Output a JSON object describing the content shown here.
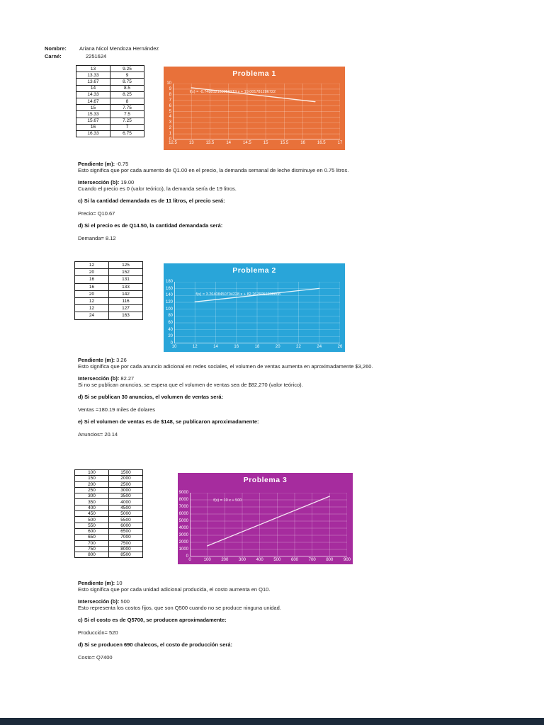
{
  "page": {
    "footer_bar_color": "#1c2a3a"
  },
  "header": {
    "name_label": "Nombre:",
    "name_value": "Ariana Nicol Mendoza Hernández",
    "id_label": "Carné:",
    "id_value": "2251624"
  },
  "tables": [
    {
      "rows": [
        [
          "13",
          "9.25"
        ],
        [
          "13.33",
          "9"
        ],
        [
          "13.67",
          "8.75"
        ],
        [
          "14",
          "8.5"
        ],
        [
          "14.33",
          "8.25"
        ],
        [
          "14.67",
          "8"
        ],
        [
          "15",
          "7.75"
        ],
        [
          "15.33",
          "7.5"
        ],
        [
          "15.67",
          "7.25"
        ],
        [
          "16",
          "7"
        ],
        [
          "16.33",
          "6.75"
        ]
      ],
      "right_align_last": 0
    },
    {
      "rows": [
        [
          "12",
          "125"
        ],
        [
          "20",
          "152"
        ],
        [
          "16",
          "131"
        ],
        [
          "16",
          "133"
        ],
        [
          "20",
          "142"
        ],
        [
          "12",
          "116"
        ],
        [
          "12",
          "127"
        ],
        [
          "24",
          "163"
        ]
      ],
      "right_align_last": 0
    },
    {
      "rows": [
        [
          "100",
          "1500"
        ],
        [
          "150",
          "2000"
        ],
        [
          "200",
          "2500"
        ],
        [
          "250",
          "3000"
        ],
        [
          "300",
          "3500"
        ],
        [
          "350",
          "4000"
        ],
        [
          "400",
          "4500"
        ],
        [
          "450",
          "5000"
        ],
        [
          "500",
          "5500"
        ],
        [
          "550",
          "6000"
        ],
        [
          "600",
          "6500"
        ],
        [
          "650",
          "7000"
        ],
        [
          "700",
          "7500"
        ],
        [
          "750",
          "8000"
        ],
        [
          "800",
          "8500"
        ]
      ],
      "right_align_last": 2
    }
  ],
  "chart_data": [
    {
      "type": "line",
      "title": "Problema 1",
      "bg_color": "#E8713A",
      "grid": true,
      "legend": "none",
      "x": [
        13,
        13.33,
        13.67,
        14,
        14.33,
        14.67,
        15,
        15.33,
        15.67,
        16,
        16.33
      ],
      "y": [
        9.25,
        9,
        8.75,
        8.5,
        8.25,
        8,
        7.75,
        7.5,
        7.25,
        7,
        6.75
      ],
      "equation": "f(x) = -0.748812169956219 x + 19.001781286722",
      "xlim": [
        12.5,
        17
      ],
      "xstep": 0.5,
      "ylim": [
        0,
        10
      ],
      "ystep": 1,
      "trend": {
        "x1": 13,
        "y1": 9.25,
        "x2": 16.33,
        "y2": 6.75
      }
    },
    {
      "type": "line",
      "title": "Problema 2",
      "bg_color": "#29A5D9",
      "grid": true,
      "legend": "none",
      "x": [
        12,
        20,
        16,
        16,
        20,
        12,
        12,
        24
      ],
      "y": [
        125,
        152,
        131,
        133,
        142,
        116,
        127,
        163
      ],
      "equation": "f(x) = 3.26408450704228 x + 82.2676056338608",
      "xlim": [
        10,
        26
      ],
      "xstep": 2,
      "ylim": [
        0,
        180
      ],
      "ystep": 20,
      "trend": {
        "x1": 12,
        "y1": 121.44,
        "x2": 24,
        "y2": 160.61
      }
    },
    {
      "type": "line",
      "title": "Problema 3",
      "bg_color": "#A62C9E",
      "grid": true,
      "legend": "none",
      "x": [
        100,
        150,
        200,
        250,
        300,
        350,
        400,
        450,
        500,
        550,
        600,
        650,
        700,
        750,
        800
      ],
      "y": [
        1500,
        2000,
        2500,
        3000,
        3500,
        4000,
        4500,
        5000,
        5500,
        6000,
        6500,
        7000,
        7500,
        8000,
        8500
      ],
      "equation": "f(x) = 10 x + 500",
      "xlim": [
        0,
        900
      ],
      "xstep": 100,
      "ylim": [
        0,
        9000
      ],
      "ystep": 1000,
      "trend": {
        "x1": 100,
        "y1": 1500,
        "x2": 800,
        "y2": 8500
      }
    }
  ],
  "sections": [
    {
      "lines": [
        {
          "bold_prefix": "Pendiente (m):",
          "text": " -0.75"
        },
        {
          "text": "Esto significa que por cada aumento de Q1.00 en el precio, la demanda semanal de leche disminuye en 0.75 litros."
        },
        {
          "bold_prefix": "Intersección (b):",
          "text": " 19.00"
        },
        {
          "text": "Cuando el precio es 0 (valor teórico), la demanda sería de 19 litros."
        },
        {
          "bold": true,
          "text": "c) Si la cantidad demandada es de 11 litros, el precio será:"
        },
        {
          "text": "Precio= Q10.67"
        },
        {
          "bold": true,
          "text": "d) Si el precio es de Q14.50, la cantidad demandada será:"
        },
        {
          "text": "Demanda= 8.12"
        }
      ]
    },
    {
      "lines": [
        {
          "bold_prefix": "Pendiente (m):",
          "text": " 3.26"
        },
        {
          "text": "Esto significa que por cada anuncio adicional en redes sociales, el volumen de ventas aumenta en aproximadamente $3,260."
        },
        {
          "bold_prefix": "Intersección (b):",
          "text": " 82.27"
        },
        {
          "text": "Si no se publican anuncios, se espera que el volumen de ventas sea de $82,270 (valor teórico)."
        },
        {
          "bold": true,
          "text": "d) Si se publican 30 anuncios, el volumen de ventas será:"
        },
        {
          "text": "Ventas =180.19 miles de dolares"
        },
        {
          "bold": true,
          "text": "e) Si el volumen de ventas es de $148, se publicaron aproximadamente:"
        },
        {
          "text": "Anuncios= 20.14"
        }
      ]
    },
    {
      "lines": [
        {
          "bold_prefix": "Pendiente (m):",
          "text": " 10"
        },
        {
          "text": "Esto significa que por cada unidad adicional producida, el costo aumenta en Q10."
        },
        {
          "bold_prefix": "Intersección (b):",
          "text": " 500"
        },
        {
          "text": "Esto representa los costos fijos, que son Q500 cuando no se produce ninguna unidad."
        },
        {
          "bold": true,
          "text": "c) Si el costo es de Q5700, se producen aproximadamente:"
        },
        {
          "text": "Producción= 520"
        },
        {
          "bold": true,
          "text": "d) Si se producen 690 chalecos, el costo de producción será:"
        },
        {
          "text": "Costo= Q7400"
        }
      ]
    }
  ]
}
